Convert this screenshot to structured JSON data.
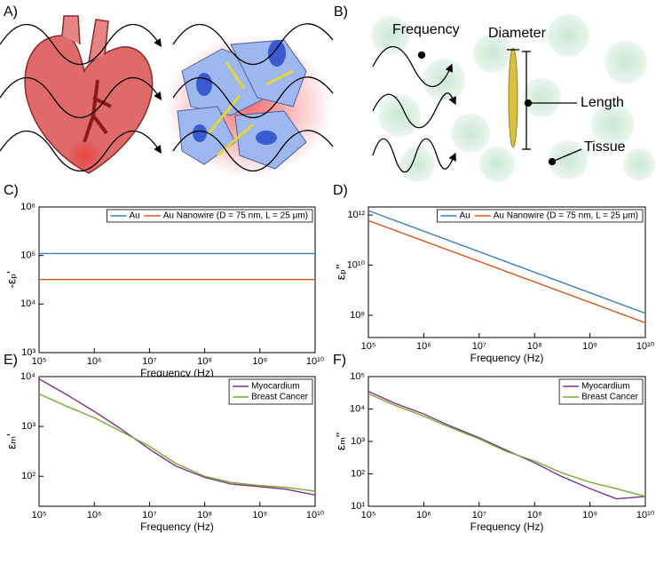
{
  "illustrations": {
    "panel_a": "A)",
    "panel_b": "B)",
    "annotations": [
      "Frequency",
      "Diameter",
      "Length",
      "Tissue"
    ]
  },
  "chart_data": [
    {
      "type": "line",
      "panel_label": "C)",
      "xlabel": "Frequency (Hz)",
      "ylabel": "-εₚ'",
      "log_x": true,
      "log_y": true,
      "legend": "upper right",
      "x": [
        100000,
        10000000000
      ],
      "series": [
        {
          "name": "Au",
          "color": "#3b7dc4",
          "values": [
            110000,
            110000
          ]
        },
        {
          "name": "Au Nanowire (D = 75 nm, L = 25 μm)",
          "color": "#d9541a",
          "values": [
            32000,
            32000
          ]
        }
      ],
      "xlim": [
        100000,
        10000000000
      ],
      "ylim": [
        1000,
        1000000
      ],
      "xticks": [
        {
          "value": 100000,
          "label": "10⁵"
        },
        {
          "value": 1000000,
          "label": "10⁶"
        },
        {
          "value": 10000000,
          "label": "10⁷"
        },
        {
          "value": 100000000,
          "label": "10⁸"
        },
        {
          "value": 1000000000,
          "label": "10⁹"
        },
        {
          "value": 10000000000,
          "label": "10¹⁰"
        }
      ],
      "yticks": [
        {
          "value": 1000,
          "label": "10³"
        },
        {
          "value": 10000,
          "label": "10⁴"
        },
        {
          "value": 100000,
          "label": "10⁵"
        },
        {
          "value": 1000000,
          "label": "10⁶"
        }
      ]
    },
    {
      "type": "line",
      "panel_label": "D)",
      "xlabel": "Frequency (Hz)",
      "ylabel": "εₚ''",
      "log_x": true,
      "log_y": true,
      "legend": "upper right",
      "x": [
        100000,
        10000000000
      ],
      "series": [
        {
          "name": "Au",
          "color": "#3b7dc4",
          "values": [
            1500000000000,
            120000000
          ]
        },
        {
          "name": "Au Nanowire (D = 75 nm, L = 25 μm)",
          "color": "#d9541a",
          "values": [
            600000000000,
            50000000
          ]
        }
      ],
      "xlim": [
        100000,
        10000000000
      ],
      "ylim": [
        13000000,
        2100000000000
      ],
      "xticks": [
        {
          "value": 100000,
          "label": "10⁵"
        },
        {
          "value": 1000000,
          "label": "10⁶"
        },
        {
          "value": 10000000,
          "label": "10⁷"
        },
        {
          "value": 100000000,
          "label": "10⁸"
        },
        {
          "value": 1000000000,
          "label": "10⁹"
        },
        {
          "value": 10000000000,
          "label": "10¹⁰"
        }
      ],
      "yticks": [
        {
          "value": 100000000,
          "label": "10⁸"
        },
        {
          "value": 10000000000,
          "label": "10¹⁰"
        },
        {
          "value": 1000000000000,
          "label": "10¹²"
        }
      ]
    },
    {
      "type": "line",
      "panel_label": "E)",
      "xlabel": "Frequency (Hz)",
      "ylabel": "εₘ'",
      "log_x": true,
      "log_y": true,
      "legend": "upper right",
      "x": [
        100000,
        300000,
        1000000,
        3000000,
        10000000,
        30000000,
        100000000,
        300000000,
        1000000000,
        3000000000,
        10000000000
      ],
      "series": [
        {
          "name": "Myocardium",
          "color": "#7e2f8e",
          "values": [
            9000,
            4500,
            2000,
            900,
            350,
            160,
            95,
            70,
            62,
            55,
            42
          ]
        },
        {
          "name": "Breast Cancer",
          "color": "#77ac30",
          "values": [
            4500,
            2600,
            1500,
            800,
            400,
            180,
            100,
            75,
            65,
            60,
            50
          ]
        }
      ],
      "xlim": [
        100000,
        10000000000
      ],
      "ylim": [
        25,
        10000
      ],
      "xticks": [
        {
          "value": 100000,
          "label": "10⁵"
        },
        {
          "value": 1000000,
          "label": "10⁶"
        },
        {
          "value": 10000000,
          "label": "10⁷"
        },
        {
          "value": 100000000,
          "label": "10⁸"
        },
        {
          "value": 1000000000,
          "label": "10⁹"
        },
        {
          "value": 10000000000,
          "label": "10¹⁰"
        }
      ],
      "yticks": [
        {
          "value": 100,
          "label": "10²"
        },
        {
          "value": 1000,
          "label": "10³"
        },
        {
          "value": 10000,
          "label": "10⁴"
        }
      ]
    },
    {
      "type": "line",
      "panel_label": "F)",
      "xlabel": "Frequency (Hz)",
      "ylabel": "εₘ''",
      "log_x": true,
      "log_y": true,
      "legend": "upper right",
      "x": [
        100000,
        300000,
        1000000,
        3000000,
        10000000,
        30000000,
        100000000,
        300000000,
        1000000000,
        3000000000,
        10000000000
      ],
      "series": [
        {
          "name": "Myocardium",
          "color": "#7e2f8e",
          "values": [
            35000,
            15000,
            7000,
            3000,
            1300,
            550,
            220,
            85,
            35,
            17,
            20
          ]
        },
        {
          "name": "Breast Cancer",
          "color": "#77ac30",
          "values": [
            30000,
            13000,
            6000,
            2700,
            1200,
            500,
            250,
            110,
            55,
            35,
            20
          ]
        }
      ],
      "xlim": [
        100000,
        10000000000
      ],
      "ylim": [
        10,
        100000
      ],
      "xticks": [
        {
          "value": 100000,
          "label": "10⁵"
        },
        {
          "value": 1000000,
          "label": "10⁶"
        },
        {
          "value": 10000000,
          "label": "10⁷"
        },
        {
          "value": 100000000,
          "label": "10⁸"
        },
        {
          "value": 1000000000,
          "label": "10⁹"
        },
        {
          "value": 10000000000,
          "label": "10¹⁰"
        }
      ],
      "yticks": [
        {
          "value": 10,
          "label": "10¹"
        },
        {
          "value": 100,
          "label": "10²"
        },
        {
          "value": 1000,
          "label": "10³"
        },
        {
          "value": 10000,
          "label": "10⁴"
        },
        {
          "value": 100000,
          "label": "10⁵"
        }
      ]
    }
  ]
}
